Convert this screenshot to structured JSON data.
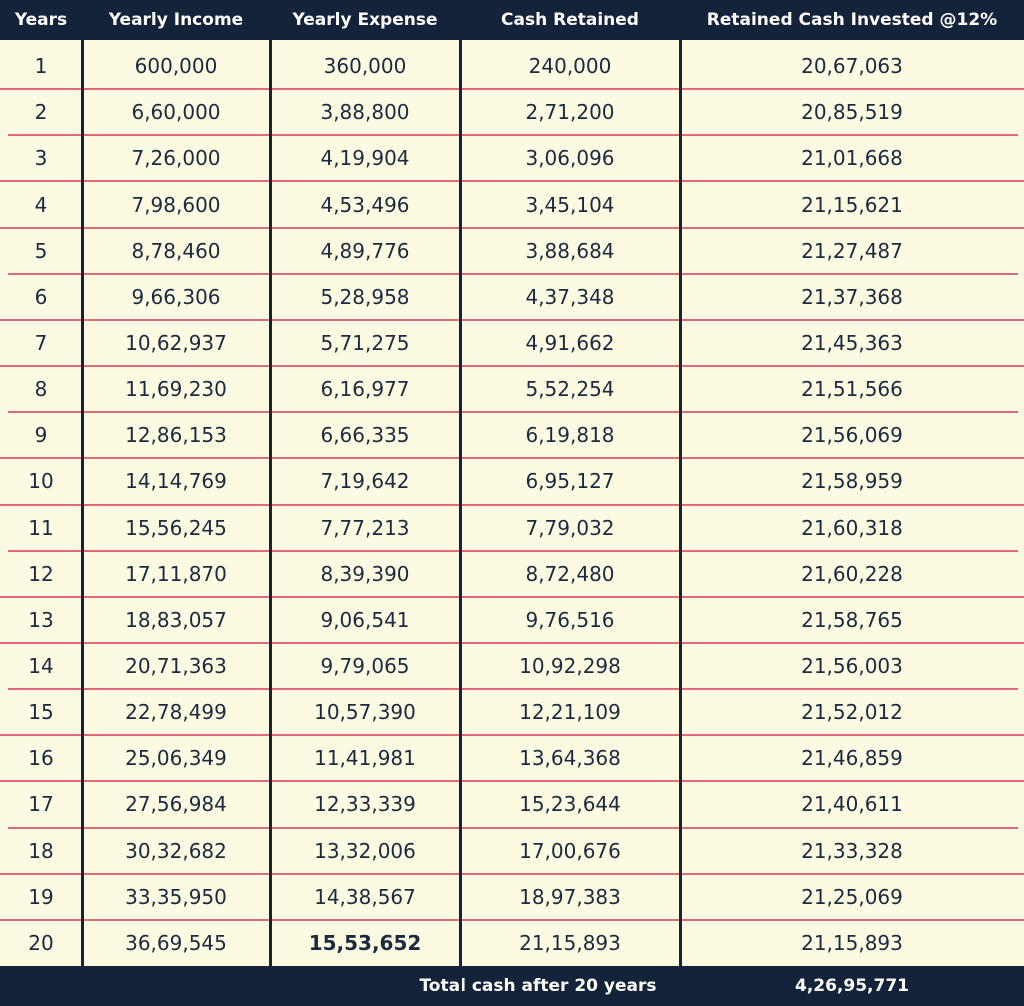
{
  "table": {
    "header": [
      "Years",
      "Yearly Income",
      "Yearly Expense",
      "Cash Retained",
      "Retained Cash Invested @12%"
    ],
    "rows": [
      [
        "1",
        "600,000",
        "360,000",
        "240,000",
        "20,67,063"
      ],
      [
        "2",
        "6,60,000",
        "3,88,800",
        "2,71,200",
        "20,85,519"
      ],
      [
        "3",
        "7,26,000",
        "4,19,904",
        "3,06,096",
        "21,01,668"
      ],
      [
        "4",
        "7,98,600",
        "4,53,496",
        "3,45,104",
        "21,15,621"
      ],
      [
        "5",
        "8,78,460",
        "4,89,776",
        "3,88,684",
        "21,27,487"
      ],
      [
        "6",
        "9,66,306",
        "5,28,958",
        "4,37,348",
        "21,37,368"
      ],
      [
        "7",
        "10,62,937",
        "5,71,275",
        "4,91,662",
        "21,45,363"
      ],
      [
        "8",
        "11,69,230",
        "6,16,977",
        "5,52,254",
        "21,51,566"
      ],
      [
        "9",
        "12,86,153",
        "6,66,335",
        "6,19,818",
        "21,56,069"
      ],
      [
        "10",
        "14,14,769",
        "7,19,642",
        "6,95,127",
        "21,58,959"
      ],
      [
        "11",
        "15,56,245",
        "7,77,213",
        "7,79,032",
        "21,60,318"
      ],
      [
        "12",
        "17,11,870",
        "8,39,390",
        "8,72,480",
        "21,60,228"
      ],
      [
        "13",
        "18,83,057",
        "9,06,541",
        "9,76,516",
        "21,58,765"
      ],
      [
        "14",
        "20,71,363",
        "9,79,065",
        "10,92,298",
        "21,56,003"
      ],
      [
        "15",
        "22,78,499",
        "10,57,390",
        "12,21,109",
        "21,52,012"
      ],
      [
        "16",
        "25,06,349",
        "11,41,981",
        "13,64,368",
        "21,46,859"
      ],
      [
        "17",
        "27,56,984",
        "12,33,339",
        "15,23,644",
        "21,40,611"
      ],
      [
        "18",
        "30,32,682",
        "13,32,006",
        "17,00,676",
        "21,33,328"
      ],
      [
        "19",
        "33,35,950",
        "14,38,567",
        "18,97,383",
        "21,25,069"
      ],
      [
        "20",
        "36,69,545",
        "15,53,652",
        "21,15,893",
        "21,15,893"
      ]
    ],
    "footer": {
      "label": "Total cash after 20 years",
      "value": "4,26,95,771"
    }
  }
}
